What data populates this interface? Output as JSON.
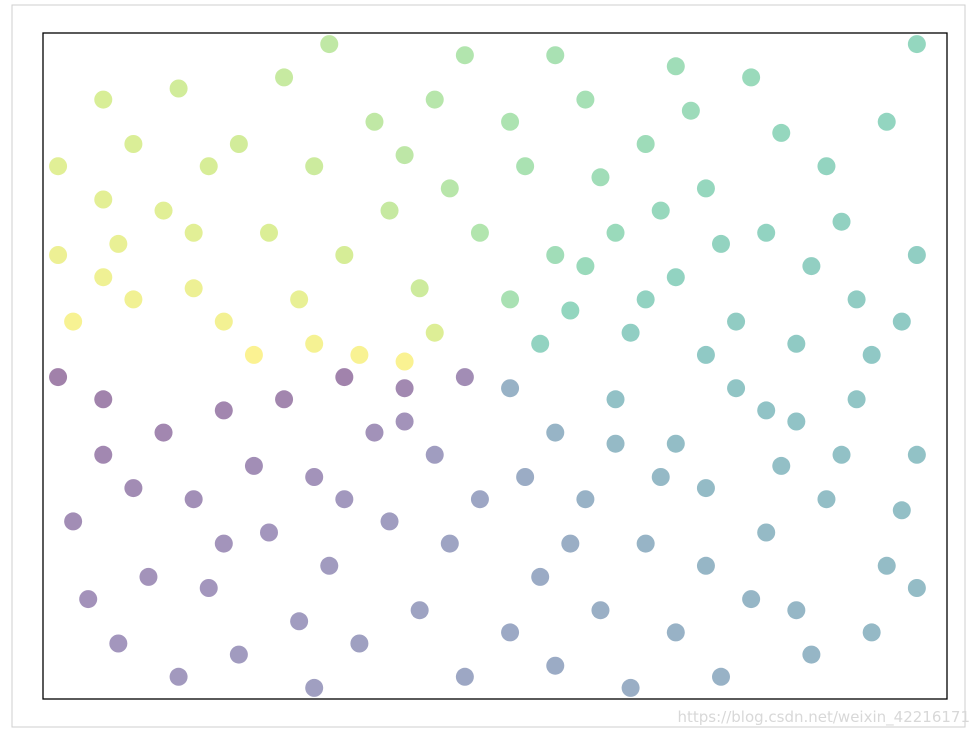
{
  "chart_data": {
    "type": "scatter",
    "x": [
      -1.45,
      -1.3,
      -1.2,
      -1.0,
      -0.9,
      -0.8,
      -0.6,
      -0.45,
      -0.3,
      -1.4,
      -1.25,
      -1.1,
      -0.95,
      -1.2,
      -1.3,
      -1.05,
      -0.7,
      -0.6,
      -0.75,
      -0.5,
      -0.35,
      -0.25,
      -0.15,
      -0.4,
      -0.2,
      -0.05,
      -0.1,
      -0.55,
      -0.85,
      -1.45,
      -0.65,
      -0.2,
      -1.0,
      -0.3,
      -1.3,
      0.05,
      0.2,
      0.1,
      0.3,
      0.5,
      0.4,
      0.6,
      0.8,
      1.0,
      1.2,
      1.4,
      0.7,
      0.9,
      1.1,
      1.3,
      0.85,
      0.6,
      0.25,
      0.45,
      0.7,
      1.25,
      0.15,
      0.55,
      1.05,
      0.35,
      0.95,
      1.4,
      0.2,
      0.75,
      1.35,
      0.05,
      0.5,
      0.3,
      1.15,
      0.65,
      0.05,
      0.2,
      0.4,
      0.6,
      0.8,
      1.0,
      1.2,
      1.4,
      0.3,
      0.5,
      0.7,
      0.9,
      1.1,
      1.3,
      0.15,
      0.35,
      0.6,
      0.85,
      1.05,
      1.25,
      0.2,
      0.45,
      0.75,
      1.4,
      0.1,
      0.55,
      0.95,
      1.35,
      0.25,
      0.7,
      0.4,
      1.15,
      0.9,
      0.05,
      1.0,
      -0.1,
      -0.3,
      -0.5,
      -0.7,
      -0.9,
      -1.1,
      -1.3,
      -1.45,
      -0.2,
      -0.4,
      -0.6,
      -0.8,
      -1.0,
      -1.2,
      -1.4,
      -0.15,
      -0.35,
      -0.55,
      -0.75,
      -0.95,
      -1.15,
      -1.35,
      -0.25,
      -0.45,
      -0.65,
      -0.85,
      -1.05,
      -1.25,
      -0.1,
      -0.6,
      -0.05,
      -0.5,
      -0.9,
      -1.3,
      -0.3
    ],
    "values": [
      0.5,
      0.4,
      0.3,
      0.35,
      0.2,
      0.05,
      0.1,
      0.05,
      0.02,
      0.2,
      0.55,
      0.7,
      0.9,
      1.0,
      1.2,
      1.25,
      1.3,
      0.9,
      0.6,
      0.5,
      0.7,
      0.35,
      0.8,
      1.1,
      1.2,
      0.6,
      1.4,
      1.45,
      1.0,
      0.9,
      0.3,
      0.15,
      0.6,
      0.95,
      0.75,
      0.3,
      0.5,
      0.9,
      1.2,
      1.0,
      0.6,
      0.4,
      0.2,
      0.1,
      0.3,
      0.5,
      0.8,
      0.6,
      0.9,
      1.1,
      1.3,
      1.35,
      0.25,
      0.15,
      0.05,
      0.05,
      0.1,
      0.7,
      0.45,
      0.85,
      1.05,
      1.45,
      1.4,
      0.55,
      0.2,
      1.1,
      0.3,
      0.45,
      0.65,
      1.15,
      -0.1,
      -0.3,
      -0.15,
      -0.35,
      -0.1,
      -0.25,
      -0.15,
      -0.4,
      -0.6,
      -0.8,
      -0.55,
      -0.75,
      -0.6,
      -0.9,
      -0.95,
      -1.1,
      -1.2,
      -1.05,
      -1.3,
      -1.2,
      -1.35,
      -1.45,
      -1.4,
      -1.0,
      -0.5,
      -0.5,
      -0.45,
      -0.65,
      -0.8,
      -0.9,
      -0.35,
      -0.4,
      -0.2,
      -1.2,
      -1.1,
      -0.05,
      -0.1,
      -0.05,
      -0.15,
      -0.2,
      -0.3,
      -0.15,
      -0.05,
      -0.4,
      -0.3,
      -0.5,
      -0.45,
      -0.6,
      -0.55,
      -0.7,
      -0.8,
      -0.7,
      -0.9,
      -0.75,
      -1.0,
      -0.95,
      -1.05,
      -1.1,
      -1.25,
      -1.15,
      -1.3,
      -1.4,
      -1.25,
      -1.4,
      -1.45,
      -0.6,
      -0.6,
      -0.8,
      -0.4,
      -0.25
    ],
    "xlim": [
      -1.5,
      1.5
    ],
    "ylim": [
      -1.5,
      1.5
    ],
    "colormap": "viridis",
    "alpha": 0.5
  },
  "watermark": "https://blog.csdn.net/weixin_42216171"
}
